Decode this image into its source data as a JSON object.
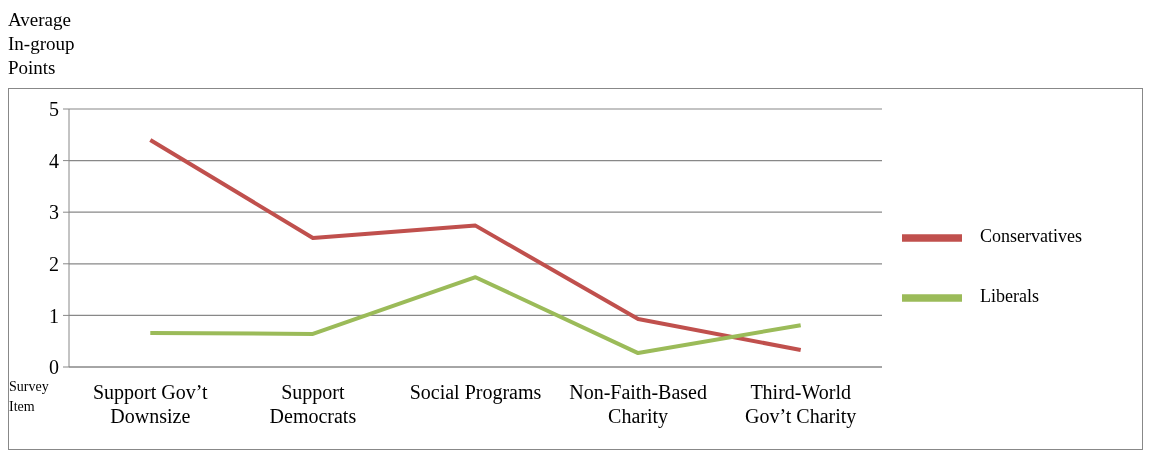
{
  "chart_data": {
    "type": "line",
    "ylabel": "Average\nIn-group\nPoints",
    "xlabel": "Survey\nItem",
    "categories": [
      "Support Gov’t\nDownsize",
      "Support\nDemocrats",
      "Social Programs",
      "Non-Faith-Based\nCharity",
      "Third-World\nGov’t Charity"
    ],
    "series": [
      {
        "name": "Conservatives",
        "color": "#c0504d",
        "values": [
          4.4,
          2.5,
          2.74,
          0.93,
          0.33
        ]
      },
      {
        "name": "Liberals",
        "color": "#9bbb59",
        "values": [
          0.66,
          0.64,
          1.74,
          0.27,
          0.81
        ]
      }
    ],
    "ylim": [
      0,
      5
    ],
    "yticks": [
      0,
      1,
      2,
      3,
      4,
      5
    ],
    "grid": "y",
    "legend": "right",
    "marker": "none",
    "line_style": "solid"
  }
}
